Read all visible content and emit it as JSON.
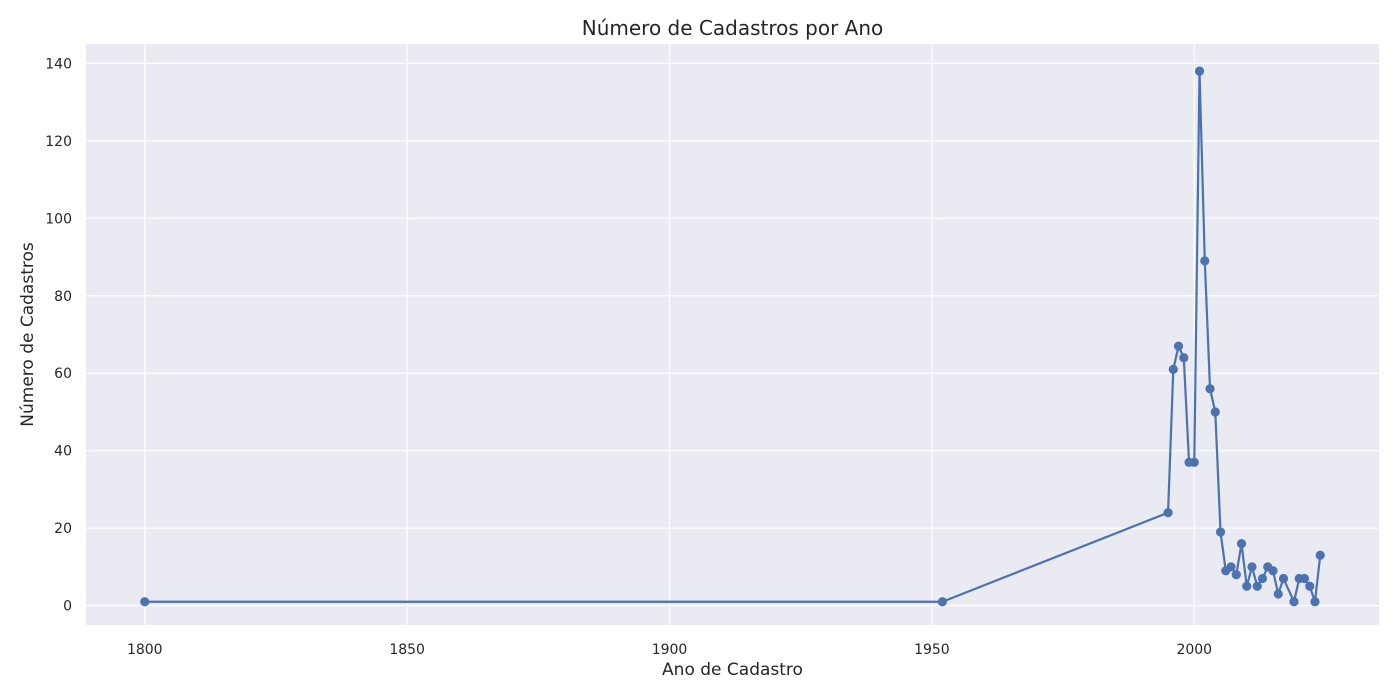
{
  "chart_data": {
    "type": "line",
    "title": "Número de Cadastros por Ano",
    "xlabel": "Ano de Cadastro",
    "ylabel": "Número de Cadastros",
    "xlim": [
      1788.8,
      2035.2
    ],
    "ylim": [
      -5,
      145
    ],
    "xticks": [
      1800,
      1850,
      1900,
      1950,
      2000
    ],
    "yticks": [
      0,
      20,
      40,
      60,
      80,
      100,
      120,
      140
    ],
    "grid": true,
    "legend": "none",
    "colors": {
      "background": "#EAEAF2",
      "grid": "#FFFFFF",
      "line": "#4C72B0",
      "text": "#262626"
    },
    "series": [
      {
        "x": [
          1800,
          1952,
          1995,
          1996,
          1997,
          1998,
          1999,
          2000,
          2001,
          2002,
          2003,
          2004,
          2005,
          2006,
          2007,
          2008,
          2009,
          2010,
          2011,
          2012,
          2013,
          2014,
          2015,
          2016,
          2017,
          2019,
          2020,
          2021,
          2022,
          2023,
          2024
        ],
        "y": [
          1,
          1,
          24,
          61,
          67,
          64,
          37,
          37,
          138,
          89,
          56,
          50,
          19,
          9,
          10,
          8,
          16,
          5,
          10,
          5,
          7,
          10,
          9,
          3,
          7,
          1,
          7,
          7,
          5,
          1,
          13
        ]
      }
    ]
  }
}
